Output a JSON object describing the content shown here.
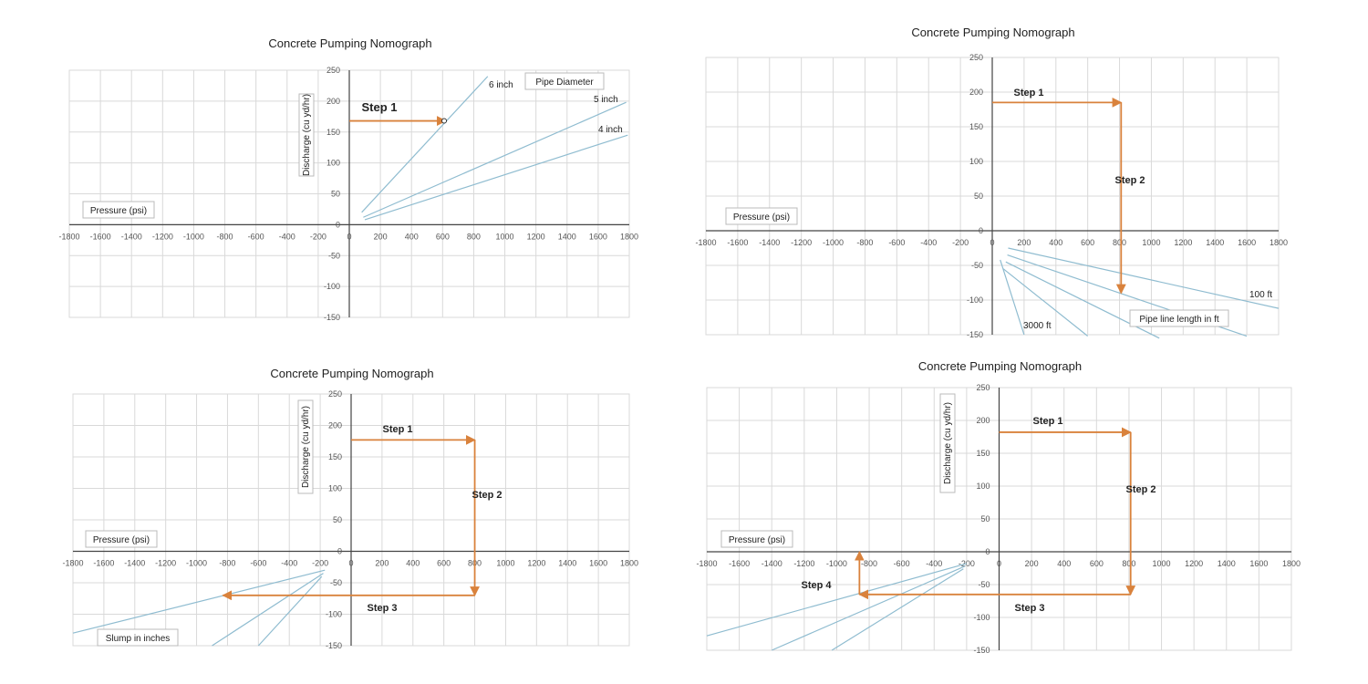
{
  "chart_data": [
    {
      "type": "line",
      "title": "Concrete Pumping Nomograph",
      "xlabel": "Pressure (psi)",
      "ylabel": "Discharge (cu yd/hr)",
      "xlim": [
        -1800,
        1800
      ],
      "ylim": [
        -150,
        250
      ],
      "x_ticks": [
        "-1800",
        "-1600",
        "-1400",
        "-1200",
        "-1000",
        "-800",
        "-600",
        "-400",
        "-200",
        "0",
        "200",
        "400",
        "600",
        "800",
        "1000",
        "1200",
        "1400",
        "1600",
        "1800"
      ],
      "y_ticks": [
        "250",
        "200",
        "150",
        "100",
        "50",
        "0",
        "-50",
        "-100",
        "-150"
      ],
      "grid": true,
      "series": [
        {
          "name": "6 inch",
          "points": [
            [
              80,
              20
            ],
            [
              890,
              240
            ]
          ]
        },
        {
          "name": "5 inch",
          "points": [
            [
              90,
              12
            ],
            [
              1780,
              198
            ]
          ]
        },
        {
          "name": "4 inch",
          "points": [
            [
              100,
              8
            ],
            [
              1790,
              145
            ]
          ]
        }
      ],
      "series_group_label": "Pipe Diameter",
      "steps": [
        {
          "label": "Step 1",
          "path": [
            [
              0,
              168
            ],
            [
              620,
              168
            ]
          ]
        }
      ],
      "marker": {
        "x": 610,
        "y": 168
      }
    },
    {
      "type": "line",
      "title": "Concrete Pumping Nomograph",
      "xlabel": "Pressure (psi)",
      "ylabel": "",
      "xlim": [
        -1800,
        1800
      ],
      "ylim": [
        -150,
        250
      ],
      "x_ticks": [
        "-1800",
        "-1600",
        "-1400",
        "-1200",
        "-1000",
        "-800",
        "-600",
        "-400",
        "-200",
        "0",
        "200",
        "400",
        "600",
        "800",
        "1000",
        "1200",
        "1400",
        "1600",
        "1800"
      ],
      "y_ticks": [
        "250",
        "200",
        "150",
        "100",
        "50",
        "0",
        "-50",
        "-100",
        "-150"
      ],
      "grid": true,
      "series": [
        {
          "name": "100 ft",
          "points": [
            [
              100,
              -25
            ],
            [
              1800,
              -112
            ]
          ]
        },
        {
          "name": "",
          "points": [
            [
              95,
              -35
            ],
            [
              1600,
              -152
            ]
          ]
        },
        {
          "name": "",
          "points": [
            [
              85,
              -45
            ],
            [
              1050,
              -155
            ]
          ]
        },
        {
          "name": "",
          "points": [
            [
              70,
              -55
            ],
            [
              600,
              -152
            ]
          ]
        },
        {
          "name": "3000 ft",
          "points": [
            [
              50,
              -42
            ],
            [
              200,
              -150
            ]
          ]
        }
      ],
      "series_group_label": "Pipe line length in ft",
      "steps": [
        {
          "label": "Step 1",
          "path": [
            [
              0,
              185
            ],
            [
              810,
              185
            ]
          ]
        },
        {
          "label": "Step 2",
          "path": [
            [
              810,
              185
            ],
            [
              810,
              -90
            ]
          ]
        }
      ]
    },
    {
      "type": "line",
      "title": "Concrete Pumping Nomograph",
      "xlabel": "Pressure (psi)",
      "ylabel": "Discharge (cu yd/hr)",
      "xlim": [
        -1800,
        1800
      ],
      "ylim": [
        -150,
        250
      ],
      "x_ticks": [
        "-1800",
        "-1600",
        "-1400",
        "-1200",
        "-1000",
        "-800",
        "-600",
        "-400",
        "-200",
        "0",
        "200",
        "400",
        "600",
        "800",
        "1000",
        "1200",
        "1400",
        "1600",
        "1800"
      ],
      "y_ticks": [
        "250",
        "200",
        "150",
        "100",
        "50",
        "0",
        "-50",
        "-100",
        "-150"
      ],
      "grid": true,
      "series": [
        {
          "name": "",
          "points": [
            [
              -170,
              -30
            ],
            [
              -1800,
              -130
            ]
          ]
        },
        {
          "name": "",
          "points": [
            [
              -180,
              -35
            ],
            [
              -900,
              -150
            ]
          ]
        },
        {
          "name": "",
          "points": [
            [
              -190,
              -40
            ],
            [
              -600,
              -150
            ]
          ]
        }
      ],
      "series_group_label": "Slump in inches",
      "steps": [
        {
          "label": "Step 1",
          "path": [
            [
              0,
              177
            ],
            [
              800,
              177
            ]
          ]
        },
        {
          "label": "Step 2",
          "path": [
            [
              800,
              177
            ],
            [
              800,
              -70
            ]
          ]
        },
        {
          "label": "Step 3",
          "path": [
            [
              800,
              -70
            ],
            [
              -830,
              -70
            ]
          ]
        }
      ]
    },
    {
      "type": "line",
      "title": "Concrete Pumping Nomograph",
      "xlabel": "Pressure (psi)",
      "ylabel": "Discharge (cu yd/hr)",
      "xlim": [
        -1800,
        1800
      ],
      "ylim": [
        -150,
        250
      ],
      "x_ticks": [
        "-1800",
        "-1600",
        "-1400",
        "-1200",
        "-1000",
        "-800",
        "-600",
        "-400",
        "-200",
        "0",
        "200",
        "400",
        "600",
        "800",
        "1000",
        "1200",
        "1400",
        "1600",
        "1800"
      ],
      "y_ticks": [
        "250",
        "200",
        "150",
        "100",
        "50",
        "0",
        "-50",
        "-100",
        "-150"
      ],
      "grid": true,
      "series": [
        {
          "name": "",
          "points": [
            [
              -200,
              -18
            ],
            [
              -1800,
              -128
            ]
          ]
        },
        {
          "name": "",
          "points": [
            [
              -210,
              -22
            ],
            [
              -1400,
              -150
            ]
          ]
        },
        {
          "name": "",
          "points": [
            [
              -220,
              -26
            ],
            [
              -1030,
              -150
            ]
          ]
        }
      ],
      "series_group_label": "",
      "steps": [
        {
          "label": "Step 1",
          "path": [
            [
              0,
              182
            ],
            [
              810,
              182
            ]
          ]
        },
        {
          "label": "Step 2",
          "path": [
            [
              810,
              182
            ],
            [
              810,
              -65
            ]
          ]
        },
        {
          "label": "Step 3",
          "path": [
            [
              810,
              -65
            ],
            [
              -860,
              -65
            ]
          ]
        },
        {
          "label": "Step 4",
          "path": [
            [
              -860,
              -65
            ],
            [
              -860,
              0
            ]
          ]
        }
      ]
    }
  ]
}
